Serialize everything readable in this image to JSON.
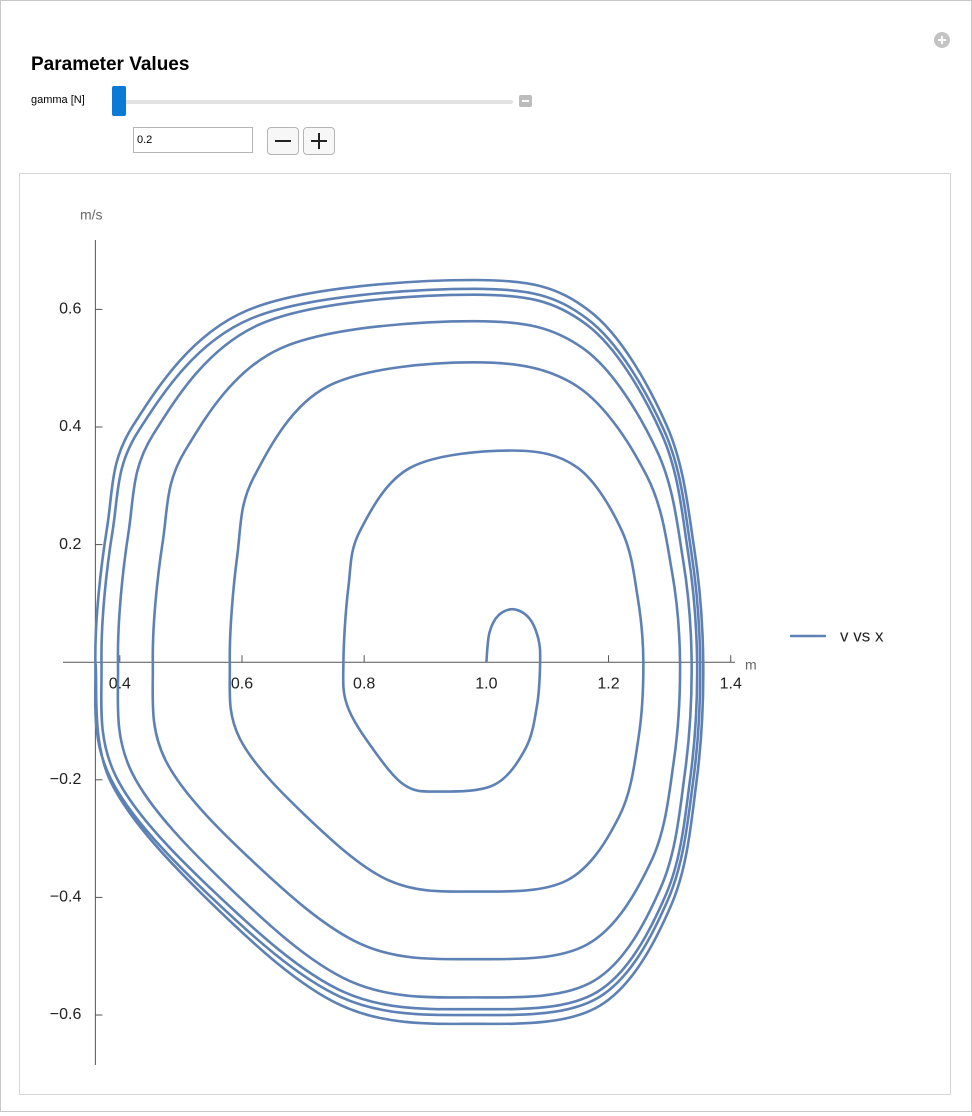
{
  "controls": {
    "title": "Parameter Values",
    "slider_label": "gamma [N]",
    "input_value": "0.2"
  },
  "chart_data": {
    "type": "line",
    "x_label": "m",
    "y_label": "m/s",
    "x": [
      1.0,
      1.005,
      1.02,
      1.045,
      1.07,
      1.085,
      1.088,
      1.083,
      1.064,
      1.012,
      0.92,
      0.866,
      0.814,
      0.772,
      0.766,
      0.774,
      0.793,
      0.876,
      1.04,
      1.149,
      1.222,
      1.248,
      1.257,
      1.249,
      1.218,
      1.132,
      0.98,
      0.84,
      0.704,
      0.596,
      0.58,
      0.592,
      0.62,
      0.74,
      0.98,
      1.149,
      1.263,
      1.304,
      1.317,
      1.307,
      1.27,
      1.165,
      0.98,
      0.796,
      0.617,
      0.475,
      0.454,
      0.47,
      0.507,
      0.664,
      0.98,
      1.158,
      1.279,
      1.322,
      1.336,
      1.325,
      1.286,
      1.176,
      0.98,
      0.776,
      0.578,
      0.42,
      0.397,
      0.414,
      0.455,
      0.63,
      0.98,
      1.163,
      1.287,
      1.33,
      1.345,
      1.334,
      1.294,
      1.181,
      0.98,
      0.767,
      0.559,
      0.394,
      0.37,
      0.388,
      0.431,
      0.614,
      0.98,
      1.165,
      1.291,
      1.335,
      1.35,
      1.339,
      1.298,
      1.184,
      0.98,
      0.763,
      0.552,
      0.385,
      0.36,
      0.379,
      0.422,
      0.608,
      0.98,
      1.168,
      1.295,
      1.34,
      1.355,
      1.344,
      1.303,
      1.186,
      0.98,
      0.763,
      0.552,
      0.385,
      0.36
    ],
    "series": [
      {
        "name": "v vs x",
        "color": "#5e81b5",
        "values": [
          0,
          0.05,
          0.08,
          0.09,
          0.075,
          0.04,
          0,
          -0.073,
          -0.147,
          -0.209,
          -0.22,
          -0.209,
          -0.147,
          -0.073,
          0,
          0.126,
          0.223,
          0.331,
          0.36,
          0.331,
          0.223,
          0.108,
          0,
          -0.129,
          -0.261,
          -0.371,
          -0.39,
          -0.371,
          -0.261,
          -0.129,
          0,
          0.179,
          0.316,
          0.469,
          0.51,
          0.469,
          0.316,
          0.153,
          0,
          -0.167,
          -0.338,
          -0.48,
          -0.505,
          -0.48,
          -0.338,
          -0.167,
          0,
          0.203,
          0.36,
          0.534,
          0.58,
          0.534,
          0.36,
          0.174,
          0,
          -0.188,
          -0.382,
          -0.542,
          -0.57,
          -0.542,
          -0.382,
          -0.188,
          0,
          0.219,
          0.388,
          0.575,
          0.625,
          0.575,
          0.388,
          0.188,
          0,
          -0.195,
          -0.395,
          -0.561,
          -0.59,
          -0.561,
          -0.395,
          -0.195,
          0,
          0.222,
          0.394,
          0.584,
          0.635,
          0.584,
          0.394,
          0.191,
          0,
          -0.198,
          -0.402,
          -0.57,
          -0.6,
          -0.57,
          -0.402,
          -0.198,
          0,
          0.228,
          0.403,
          0.598,
          0.65,
          0.598,
          0.403,
          0.195,
          0,
          -0.203,
          -0.412,
          -0.584,
          -0.615,
          -0.584,
          -0.412,
          -0.203,
          0
        ]
      }
    ],
    "xlim": [
      0.307,
      1.407
    ],
    "ylim": [
      -0.685,
      0.718
    ],
    "xticks": [
      0.4,
      0.6,
      0.8,
      {
        "value": 1,
        "label": "1.0"
      },
      1.2,
      1.4
    ],
    "yticks": [
      {
        "value": -0.6,
        "label": "−0.6"
      },
      {
        "value": -0.4,
        "label": "−0.4"
      },
      {
        "value": -0.2,
        "label": "−0.2"
      },
      0.2,
      0.4,
      0.6
    ],
    "grid": false,
    "legend": "right"
  }
}
